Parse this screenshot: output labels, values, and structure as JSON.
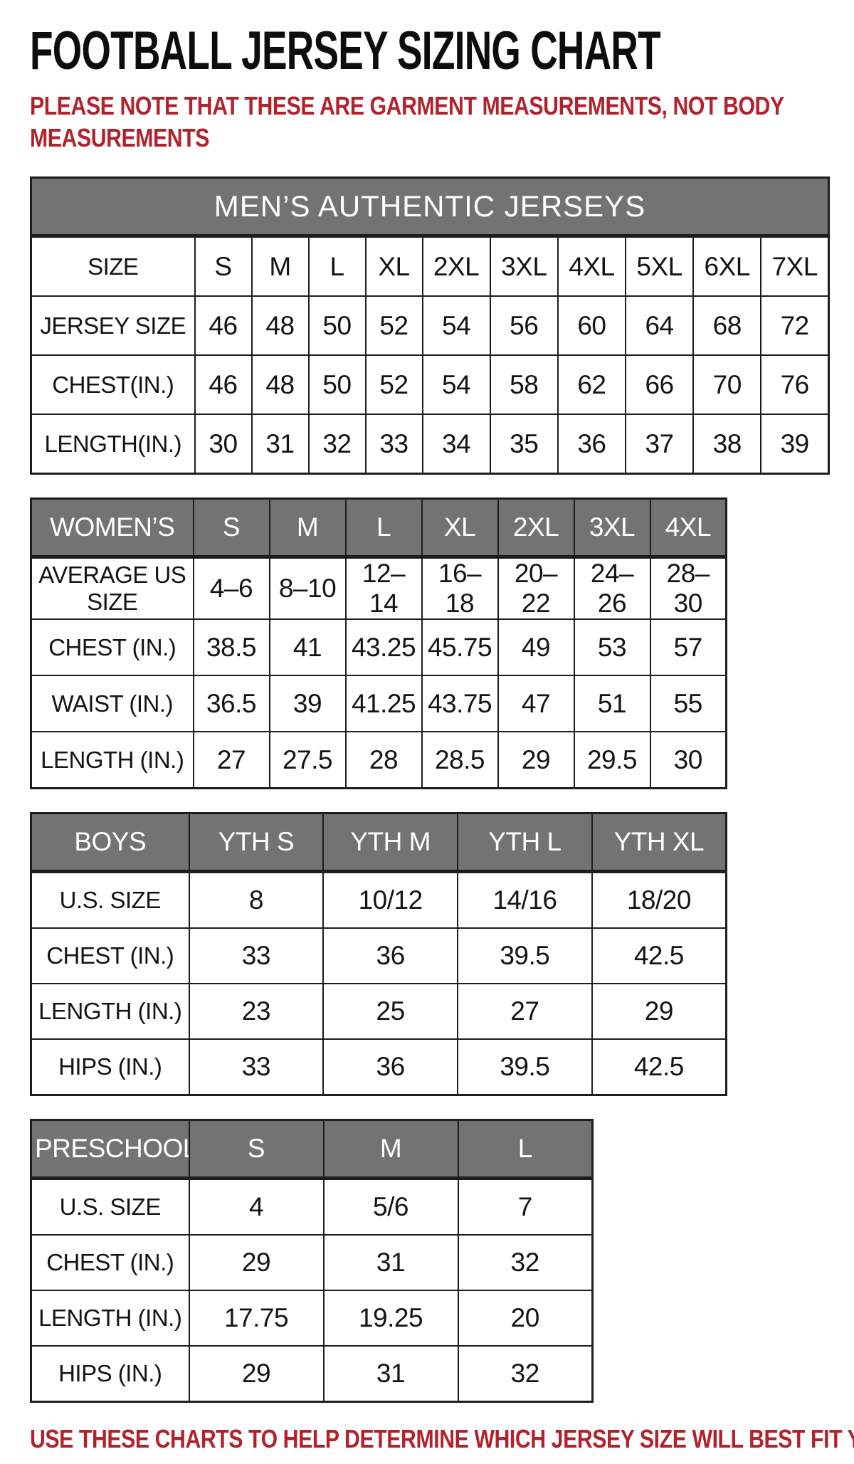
{
  "page": {
    "title": "FOOTBALL JERSEY SIZING CHART",
    "note": "PLEASE NOTE THAT THESE ARE GARMENT MEASUREMENTS, NOT BODY MEASUREMENTS",
    "footer": "USE THESE CHARTS TO HELP DETERMINE WHICH JERSEY SIZE WILL BEST FIT YOU.",
    "colors": {
      "accent_red": "#b2222c",
      "header_gray": "#737373",
      "header_text": "#ffffff",
      "border_dark": "#1d1d1d"
    }
  },
  "tables": [
    {
      "id": "mens",
      "banner": "MEN’S AUTHENTIC JERSEYS",
      "rows": [
        {
          "label": "SIZE",
          "cells": [
            "S",
            "M",
            "L",
            "XL",
            "2XL",
            "3XL",
            "4XL",
            "5XL",
            "6XL",
            "7XL"
          ]
        },
        {
          "label": "JERSEY SIZE",
          "cells": [
            "46",
            "48",
            "50",
            "52",
            "54",
            "56",
            "60",
            "64",
            "68",
            "72"
          ]
        },
        {
          "label": "CHEST(IN.)",
          "cells": [
            "46",
            "48",
            "50",
            "52",
            "54",
            "58",
            "62",
            "66",
            "70",
            "76"
          ]
        },
        {
          "label": "LENGTH(IN.)",
          "cells": [
            "30",
            "31",
            "32",
            "33",
            "34",
            "35",
            "36",
            "37",
            "38",
            "39"
          ]
        }
      ]
    },
    {
      "id": "womens",
      "header": {
        "label": "WOMEN’S",
        "cells": [
          "S",
          "M",
          "L",
          "XL",
          "2XL",
          "3XL",
          "4XL"
        ]
      },
      "rows": [
        {
          "label": "AVERAGE US SIZE",
          "cells": [
            "4–6",
            "8–10",
            "12–14",
            "16–18",
            "20–22",
            "24–26",
            "28–30"
          ]
        },
        {
          "label": "CHEST (IN.)",
          "cells": [
            "38.5",
            "41",
            "43.25",
            "45.75",
            "49",
            "53",
            "57"
          ]
        },
        {
          "label": "WAIST (IN.)",
          "cells": [
            "36.5",
            "39",
            "41.25",
            "43.75",
            "47",
            "51",
            "55"
          ]
        },
        {
          "label": "LENGTH (IN.)",
          "cells": [
            "27",
            "27.5",
            "28",
            "28.5",
            "29",
            "29.5",
            "30"
          ]
        }
      ]
    },
    {
      "id": "boys",
      "header": {
        "label": "BOYS",
        "cells": [
          "YTH S",
          "YTH M",
          "YTH L",
          "YTH XL"
        ]
      },
      "rows": [
        {
          "label": "U.S. SIZE",
          "cells": [
            "8",
            "10/12",
            "14/16",
            "18/20"
          ]
        },
        {
          "label": "CHEST (IN.)",
          "cells": [
            "33",
            "36",
            "39.5",
            "42.5"
          ]
        },
        {
          "label": "LENGTH (IN.)",
          "cells": [
            "23",
            "25",
            "27",
            "29"
          ]
        },
        {
          "label": "HIPS (IN.)",
          "cells": [
            "33",
            "36",
            "39.5",
            "42.5"
          ]
        }
      ]
    },
    {
      "id": "preschool",
      "header": {
        "label": "PRESCHOOL",
        "cells": [
          "S",
          "M",
          "L"
        ]
      },
      "rows": [
        {
          "label": "U.S. SIZE",
          "cells": [
            "4",
            "5/6",
            "7"
          ]
        },
        {
          "label": "CHEST (IN.)",
          "cells": [
            "29",
            "31",
            "32"
          ]
        },
        {
          "label": "LENGTH (IN.)",
          "cells": [
            "17.75",
            "19.25",
            "20"
          ]
        },
        {
          "label": "HIPS (IN.)",
          "cells": [
            "29",
            "31",
            "32"
          ]
        }
      ]
    }
  ]
}
